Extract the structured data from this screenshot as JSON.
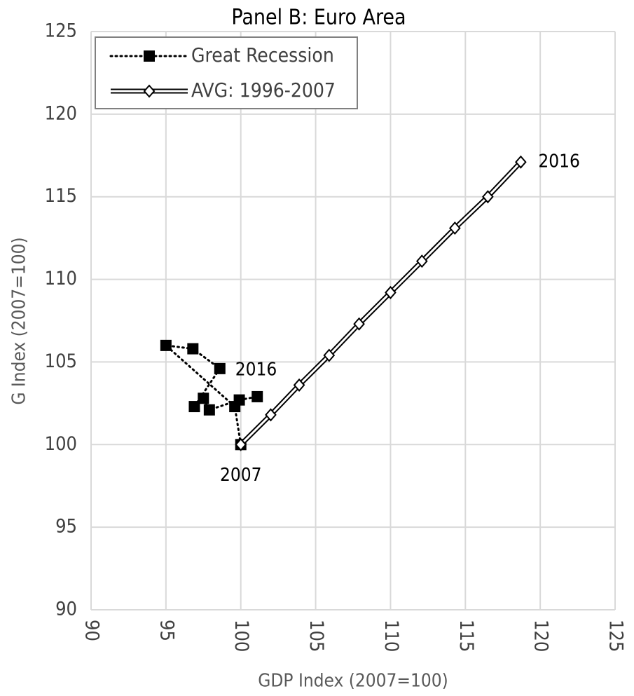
{
  "chart_data": {
    "type": "line",
    "title": "Panel B: Euro Area",
    "x_label": "GDP Index (2007=100)",
    "y_label": "G Index (2007=100)",
    "xlim": [
      90,
      125
    ],
    "xticks": [
      90,
      95,
      100,
      105,
      110,
      115,
      120,
      125
    ],
    "ylim": [
      90,
      125
    ],
    "yticks": [
      90,
      95,
      100,
      105,
      110,
      115,
      120,
      125
    ],
    "grid": true,
    "legend": "upper left",
    "series": [
      {
        "name": "Great Recession",
        "color": "#000000",
        "style": "dotted",
        "marker": "square",
        "x": [
          100,
          99.6,
          95.0,
          96.8,
          98.6,
          96.9,
          97.5,
          97.9,
          99.9,
          101.1
        ],
        "values": [
          100,
          102.3,
          106.0,
          105.8,
          104.6,
          102.3,
          102.8,
          102.1,
          102.7,
          102.9
        ]
      },
      {
        "name": "AVG: 1996-2007",
        "color": "#000000",
        "style": "double",
        "marker": "diamond",
        "x": [
          100,
          102.0,
          103.9,
          105.9,
          107.9,
          110.0,
          112.1,
          114.3,
          116.5,
          118.7
        ],
        "values": [
          100,
          101.8,
          103.6,
          105.4,
          107.3,
          109.2,
          111.1,
          113.1,
          115.0,
          117.1
        ]
      }
    ],
    "annotations": [
      "2016",
      "2016",
      "2007"
    ]
  }
}
